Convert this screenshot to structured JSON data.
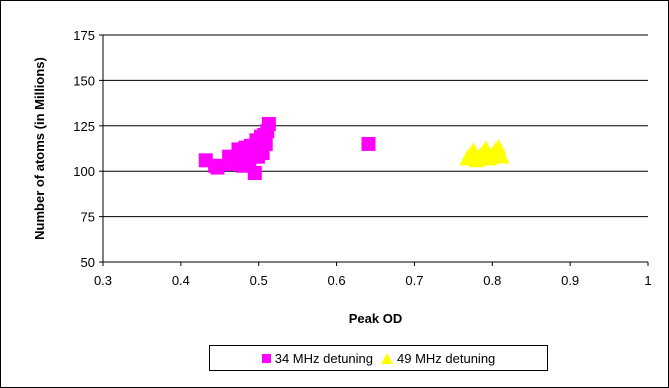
{
  "chart_data": {
    "type": "scatter",
    "xlabel": "Peak OD",
    "ylabel": "Number of atoms (in Millions)",
    "xlim": [
      0.3,
      1
    ],
    "ylim": [
      50,
      175
    ],
    "xticks": [
      "0.3",
      "0.4",
      "0.5",
      "0.6",
      "0.7",
      "0.8",
      "0.9",
      "1"
    ],
    "yticks": [
      "50",
      "75",
      "100",
      "125",
      "150",
      "175"
    ],
    "grid": "horizontal",
    "legend_position": "bottom",
    "series": [
      {
        "name": "34 MHz detuning",
        "marker": "square",
        "color": "#FF00FF",
        "points": [
          [
            0.432,
            106
          ],
          [
            0.444,
            103
          ],
          [
            0.447,
            102
          ],
          [
            0.462,
            108
          ],
          [
            0.465,
            104
          ],
          [
            0.472,
            107
          ],
          [
            0.474,
            112
          ],
          [
            0.478,
            106
          ],
          [
            0.48,
            103
          ],
          [
            0.483,
            113
          ],
          [
            0.485,
            109
          ],
          [
            0.488,
            106
          ],
          [
            0.49,
            114
          ],
          [
            0.493,
            110
          ],
          [
            0.495,
            99
          ],
          [
            0.497,
            117
          ],
          [
            0.499,
            108
          ],
          [
            0.501,
            113
          ],
          [
            0.503,
            119
          ],
          [
            0.505,
            110
          ],
          [
            0.507,
            120
          ],
          [
            0.509,
            115
          ],
          [
            0.511,
            122
          ],
          [
            0.513,
            126
          ],
          [
            0.641,
            115
          ]
        ]
      },
      {
        "name": "49 MHz detuning",
        "marker": "triangle",
        "color": "#FFFF00",
        "points": [
          [
            0.768,
            107
          ],
          [
            0.772,
            109
          ],
          [
            0.776,
            111
          ],
          [
            0.78,
            106
          ],
          [
            0.784,
            108
          ],
          [
            0.788,
            110
          ],
          [
            0.792,
            112
          ],
          [
            0.796,
            107
          ],
          [
            0.8,
            109
          ],
          [
            0.804,
            111
          ],
          [
            0.808,
            113
          ],
          [
            0.812,
            108
          ]
        ]
      }
    ]
  }
}
